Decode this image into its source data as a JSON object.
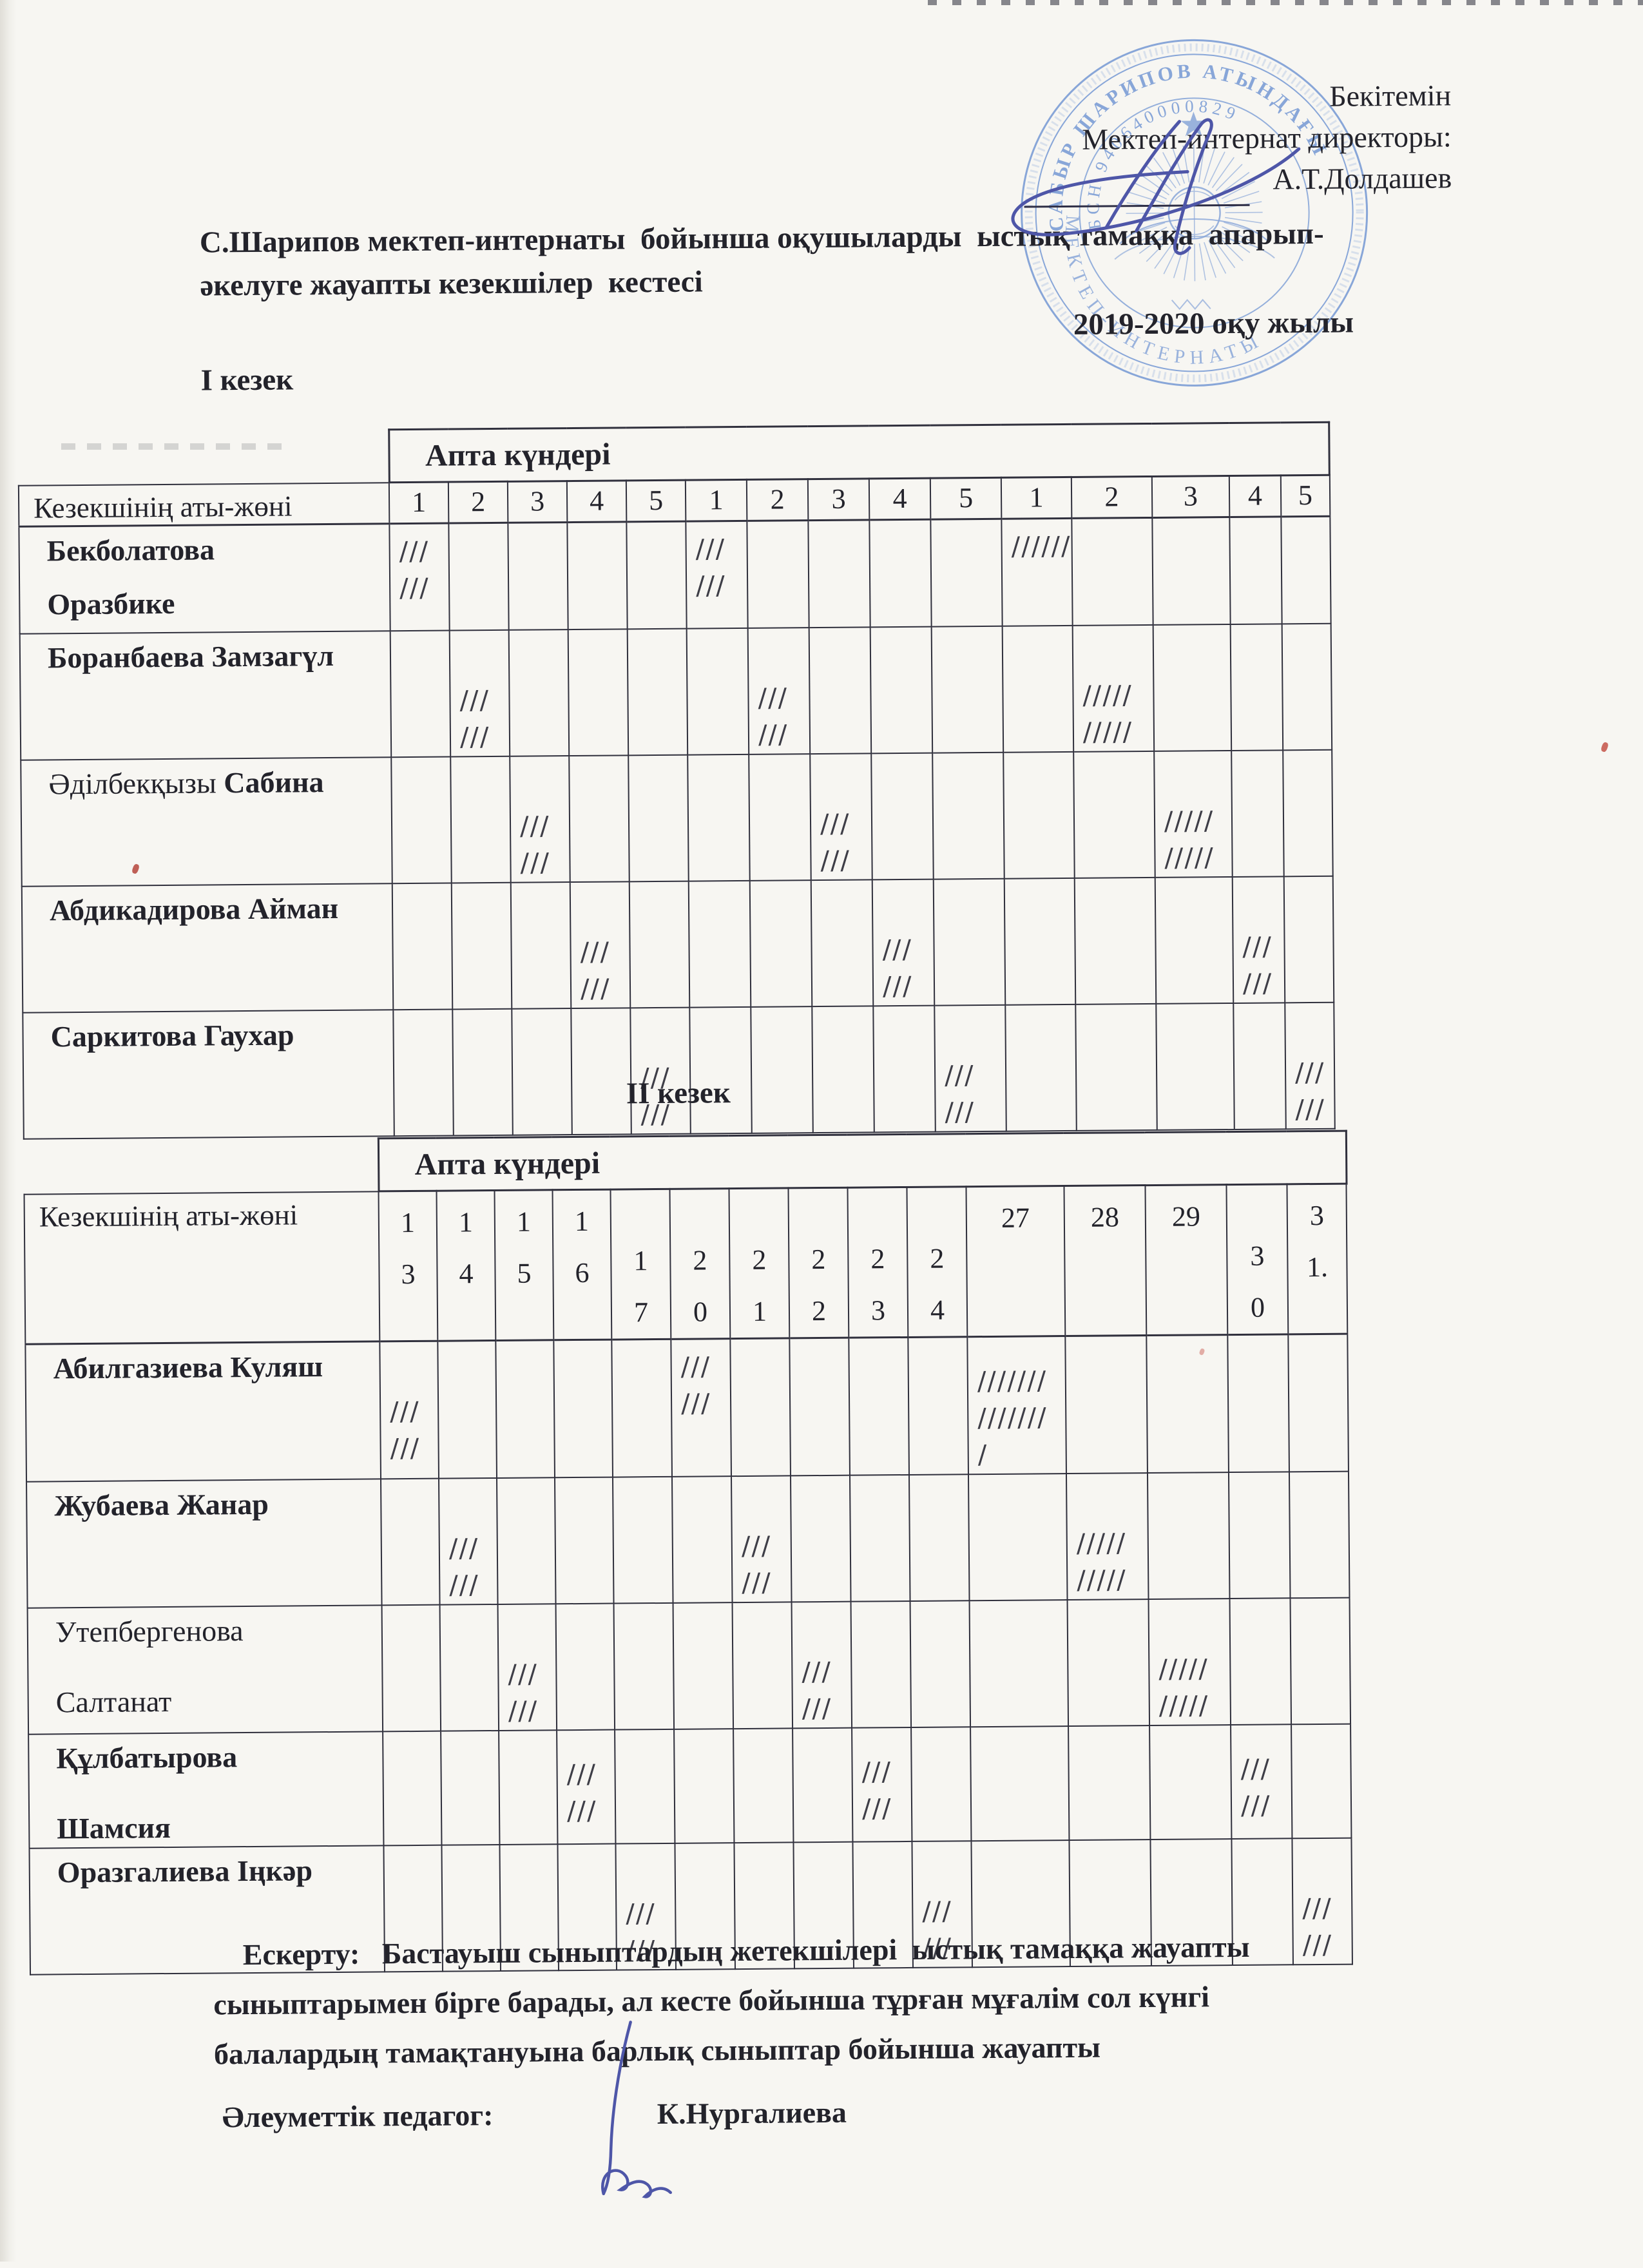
{
  "document": {
    "approval": {
      "approve_word": "Бекітемін",
      "director_line": "Мектеп-интернат директоры:",
      "director_name": "А.Т.Долдашев"
    },
    "stamp": {
      "arc_top": "САБЫР ШАРИПОВ АТЫНДАҒЫ",
      "arc_bin": "БСН 940640000829",
      "arc_bottom": "МЕКТЕП-ИНТЕРНАТЫ"
    },
    "title_line1": "С.Шарипов мектеп-интернаты  бойынша оқушыларды  ыстық тамаққа  апарып-",
    "title_line2": "әкелуге жауапты кезекшілер  кестесі",
    "school_year": "2019-2020 оқу жылы",
    "period1_label": "І кезек",
    "period2_label": "ІІ кезек",
    "note_line1": "Ескерту:   Бастауыш сыныптардың жетекшілері  ыстық тамаққа жауапты",
    "note_line2": "сыныптарымен бірге барады, ал кесте бойынша тұрған мұғалім сол күнгі",
    "note_line3": "балалардың тамақтануына барлық сыныптар бойынша жауапты",
    "signoff_role": "Әлеуметтік  педагог:",
    "signoff_name": "К.Нургалиева"
  },
  "tables": [
    {
      "group_header": "Апта күндері",
      "corner_header": "Кезекшінің аты-жөні",
      "day_columns": [
        {
          "lines": [
            "1"
          ]
        },
        {
          "lines": [
            "2"
          ]
        },
        {
          "lines": [
            "3"
          ]
        },
        {
          "lines": [
            "4"
          ]
        },
        {
          "lines": [
            "5"
          ]
        },
        {
          "lines": [
            "1"
          ]
        },
        {
          "lines": [
            "2"
          ]
        },
        {
          "lines": [
            "3"
          ]
        },
        {
          "lines": [
            "4"
          ]
        },
        {
          "lines": [
            "5"
          ]
        },
        {
          "lines": [
            "1"
          ]
        },
        {
          "lines": [
            "2"
          ]
        },
        {
          "lines": [
            "3"
          ]
        },
        {
          "lines": [
            "4"
          ]
        },
        {
          "lines": [
            "5"
          ]
        }
      ],
      "rows": [
        {
          "name": [
            [
              {
                "text": "Бекболатова",
                "bold": true
              }
            ],
            [
              {
                "text": "Оразбике",
                "bold": true
              }
            ]
          ],
          "marks": [
            {
              "col": 0,
              "lines": [
                "///",
                "///"
              ],
              "v": "top"
            },
            {
              "col": 5,
              "lines": [
                "///",
                "///"
              ],
              "v": "top"
            },
            {
              "col": 10,
              "lines": [
                "//////"
              ],
              "v": "top"
            }
          ]
        },
        {
          "name": [
            [
              {
                "text": "Боранбаева Замзагүл",
                "bold": true
              }
            ]
          ],
          "marks": [
            {
              "col": 1,
              "lines": [
                "///",
                "///"
              ],
              "v": "low"
            },
            {
              "col": 6,
              "lines": [
                "///",
                "///"
              ],
              "v": "low"
            },
            {
              "col": 11,
              "lines": [
                "/////",
                "/////"
              ],
              "v": "low"
            }
          ]
        },
        {
          "name": [
            [
              {
                "text": "Әділбекқызы",
                "bold": false
              },
              {
                "text": "Сабина",
                "bold": true
              }
            ]
          ],
          "marks": [
            {
              "col": 2,
              "lines": [
                "///",
                "///"
              ],
              "v": "low"
            },
            {
              "col": 7,
              "lines": [
                "///",
                "///"
              ],
              "v": "low"
            },
            {
              "col": 12,
              "lines": [
                "/////",
                "/////"
              ],
              "v": "low"
            }
          ]
        },
        {
          "name": [
            [
              {
                "text": "Абдикадирова Айман",
                "bold": true
              }
            ]
          ],
          "marks": [
            {
              "col": 3,
              "lines": [
                "///",
                "///"
              ],
              "v": "low"
            },
            {
              "col": 8,
              "lines": [
                "///",
                "///"
              ],
              "v": "low"
            },
            {
              "col": 13,
              "lines": [
                "///",
                "///"
              ],
              "v": "low"
            }
          ]
        },
        {
          "name": [
            [
              {
                "text": "Саркитова Гаухар",
                "bold": true
              }
            ]
          ],
          "marks": [
            {
              "col": 4,
              "lines": [
                "///",
                "///"
              ],
              "v": "low"
            },
            {
              "col": 9,
              "lines": [
                "///",
                "///"
              ],
              "v": "low"
            },
            {
              "col": 14,
              "lines": [
                "///",
                "///"
              ],
              "v": "low"
            }
          ]
        }
      ]
    },
    {
      "group_header": "Апта күндері",
      "corner_header": "Кезекшінің аты-жөні",
      "day_columns": [
        {
          "lines": [
            "1",
            "3"
          ],
          "v": "top"
        },
        {
          "lines": [
            "1",
            "4"
          ],
          "v": "top"
        },
        {
          "lines": [
            "1",
            "5"
          ],
          "v": "top"
        },
        {
          "lines": [
            "1",
            "6"
          ],
          "v": "top"
        },
        {
          "lines": [
            "1",
            "7"
          ],
          "v": "low"
        },
        {
          "lines": [
            "2",
            "0"
          ],
          "v": "low"
        },
        {
          "lines": [
            "2",
            "1"
          ],
          "v": "low"
        },
        {
          "lines": [
            "2",
            "2"
          ],
          "v": "low"
        },
        {
          "lines": [
            "2",
            "3"
          ],
          "v": "low"
        },
        {
          "lines": [
            "2",
            "4"
          ],
          "v": "low"
        },
        {
          "lines": [
            "27"
          ],
          "v": "top"
        },
        {
          "lines": [
            "28"
          ],
          "v": "top"
        },
        {
          "lines": [
            "29"
          ],
          "v": "top"
        },
        {
          "lines": [
            "3",
            "0"
          ],
          "v": "low"
        },
        {
          "lines": [
            "3",
            "1."
          ],
          "v": "top"
        }
      ],
      "rows": [
        {
          "name": [
            [
              {
                "text": "Абилгазиева Куляш",
                "bold": true
              }
            ]
          ],
          "marks": [
            {
              "col": 0,
              "lines": [
                "///",
                "///"
              ],
              "v": "low"
            },
            {
              "col": 5,
              "lines": [
                "///",
                "///"
              ],
              "v": "top"
            },
            {
              "col": 10,
              "lines": [
                "///////",
                "///////",
                "/"
              ],
              "v": "mid"
            }
          ]
        },
        {
          "name": [
            [
              {
                "text": "Жубаева Жанар",
                "bold": true
              }
            ]
          ],
          "marks": [
            {
              "col": 1,
              "lines": [
                "///",
                "///"
              ],
              "v": "low"
            },
            {
              "col": 6,
              "lines": [
                "///",
                "///"
              ],
              "v": "low"
            },
            {
              "col": 11,
              "lines": [
                "/////",
                "/////"
              ],
              "v": "low"
            }
          ]
        },
        {
          "name": [
            [
              {
                "text": "Утепбергенова",
                "bold": false
              }
            ],
            [
              {
                "text": "Салтанат",
                "bold": false
              }
            ]
          ],
          "marks": [
            {
              "col": 2,
              "lines": [
                "///",
                "///"
              ],
              "v": "low"
            },
            {
              "col": 7,
              "lines": [
                "///",
                "///"
              ],
              "v": "low"
            },
            {
              "col": 12,
              "lines": [
                "/////",
                "/////"
              ],
              "v": "low"
            }
          ]
        },
        {
          "name": [
            [
              {
                "text": "Құлбатырова",
                "bold": true
              }
            ],
            [
              {
                "text": "Шамсия",
                "bold": true
              }
            ]
          ],
          "marks": [
            {
              "col": 3,
              "lines": [
                "///",
                "///"
              ],
              "v": "mid"
            },
            {
              "col": 8,
              "lines": [
                "///",
                "///"
              ],
              "v": "mid"
            },
            {
              "col": 13,
              "lines": [
                "///",
                "///"
              ],
              "v": "mid"
            }
          ]
        },
        {
          "name": [
            [
              {
                "text": "Оразгалиева Іңкәр",
                "bold": true
              }
            ]
          ],
          "marks": [
            {
              "col": 4,
              "lines": [
                "///",
                "///"
              ],
              "v": "low"
            },
            {
              "col": 9,
              "lines": [
                "///",
                "///"
              ],
              "v": "low"
            },
            {
              "col": 14,
              "lines": [
                "///",
                "///"
              ],
              "v": "low"
            }
          ]
        }
      ]
    }
  ],
  "colors": {
    "paper": "#f7f6f2",
    "ink": "#23232b",
    "table_line": "#30303d",
    "pen_tally": "#3e3e47",
    "stamp_blue": "#7d9ed6",
    "signature_blue": "#4e56a8",
    "fleck_red": "#b5443b"
  }
}
